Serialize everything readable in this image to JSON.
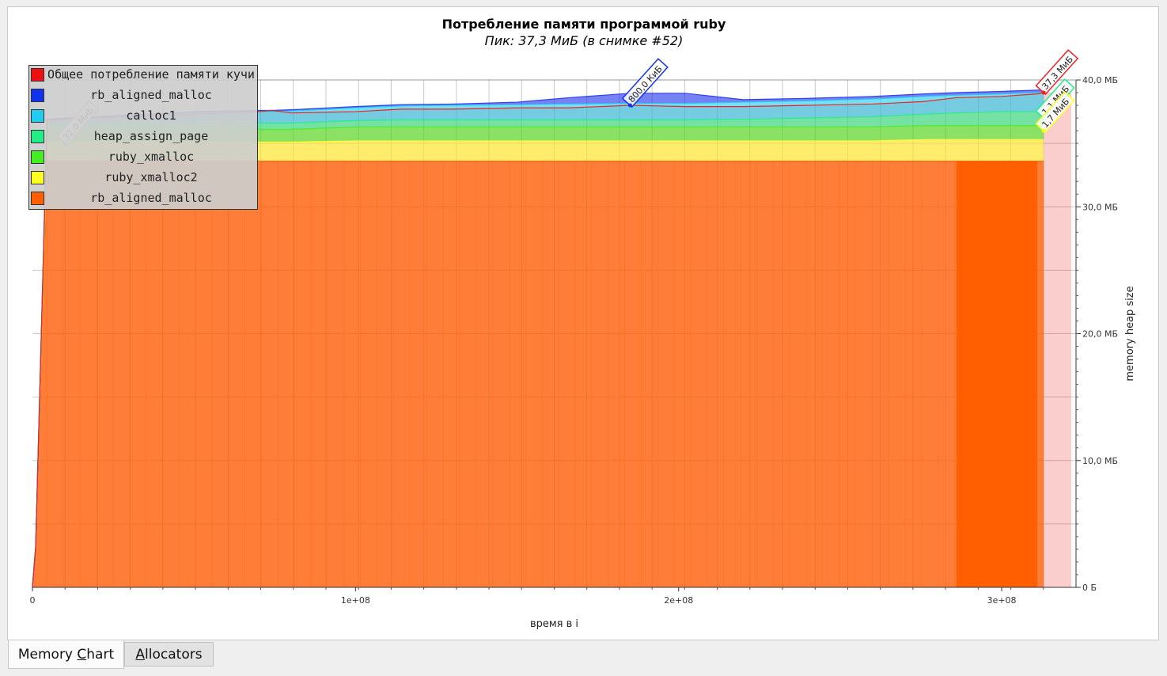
{
  "chart_data": {
    "type": "area",
    "title": "Потребление памяти программой ruby",
    "subtitle": "Пик: 37,3 МиБ (в снимке #52)",
    "xlabel": "время в i",
    "ylabel": "memory heap size",
    "x_ticks": [
      "0",
      "1e+08",
      "2e+08",
      "3e+08"
    ],
    "x_tick_values": [
      0,
      100000000,
      200000000,
      300000000
    ],
    "y_ticks": [
      "0 Б",
      "10,0 МБ",
      "20,0 МБ",
      "30,0 МБ",
      "40,0 МБ"
    ],
    "y_tick_values": [
      0,
      10,
      20,
      30,
      40
    ],
    "xlim": [
      0,
      323000000
    ],
    "ylim": [
      0,
      40
    ],
    "y_axis_position": "right",
    "grid": true,
    "legend_position": "top-left",
    "x": [
      0,
      1000000,
      4500000,
      10000000,
      20000000,
      30000000,
      40000000,
      50000000,
      60000000,
      70000000,
      74000000,
      80000000,
      100000000,
      114000000,
      130000000,
      150000000,
      166000000,
      185000000,
      202000000,
      220000000,
      240000000,
      260000000,
      276000000,
      286000000,
      300000000,
      311000000,
      313000000
    ],
    "series": [
      {
        "name": "rb_aligned_malloc",
        "color": "#ff5f00",
        "values": [
          0,
          3,
          33.6,
          33.6,
          33.6,
          33.6,
          33.6,
          33.6,
          33.6,
          33.6,
          33.6,
          33.6,
          33.6,
          33.6,
          33.6,
          33.6,
          33.6,
          33.6,
          33.6,
          33.6,
          33.6,
          33.6,
          33.6,
          33.6,
          33.6,
          33.6,
          33.6
        ]
      },
      {
        "name": "ruby_xmalloc2",
        "color": "#ffff30",
        "values": [
          0,
          0.1,
          1.5,
          1.5,
          1.5,
          1.5,
          1.5,
          1.5,
          1.5,
          1.5,
          1.5,
          1.5,
          1.6,
          1.6,
          1.6,
          1.6,
          1.6,
          1.6,
          1.6,
          1.6,
          1.6,
          1.6,
          1.7,
          1.7,
          1.7,
          1.7,
          1.7
        ]
      },
      {
        "name": "ruby_xmalloc",
        "color": "#44ee22",
        "values": [
          0,
          0.05,
          1.0,
          1.0,
          1.0,
          1.0,
          1.0,
          1.0,
          1.0,
          1.0,
          1.0,
          1.0,
          1.1,
          1.1,
          1.1,
          1.1,
          1.1,
          1.1,
          1.1,
          1.1,
          1.1,
          1.1,
          1.1,
          1.1,
          1.1,
          1.1,
          1.1
        ]
      },
      {
        "name": "heap_assign_page",
        "color": "#22ee88",
        "values": [
          0,
          0.02,
          0.4,
          0.4,
          0.4,
          0.45,
          0.45,
          0.5,
          0.5,
          0.5,
          0.5,
          0.5,
          0.5,
          0.55,
          0.55,
          0.55,
          0.55,
          0.55,
          0.55,
          0.6,
          0.7,
          0.8,
          0.9,
          1.0,
          1.1,
          1.1,
          1.1
        ]
      },
      {
        "name": "calloc1",
        "color": "#22ccee",
        "values": [
          0,
          0.02,
          0.3,
          0.4,
          0.5,
          0.6,
          0.7,
          0.8,
          0.85,
          0.9,
          0.9,
          0.95,
          1.0,
          1.1,
          1.15,
          1.2,
          1.25,
          1.3,
          1.3,
          1.35,
          1.35,
          1.4,
          1.4,
          1.4,
          1.4,
          1.5,
          1.5
        ]
      },
      {
        "name": "rb_aligned_malloc",
        "color": "#2233ee",
        "values": [
          0,
          0.01,
          0.1,
          0.1,
          0.1,
          0.1,
          0.1,
          0.1,
          0.1,
          0.1,
          0.1,
          0.1,
          0.1,
          0.1,
          0.1,
          0.2,
          0.5,
          0.8,
          0.8,
          0.2,
          0.2,
          0.2,
          0.2,
          0.2,
          0.2,
          0.2,
          0.2
        ]
      }
    ],
    "total": {
      "name": "Общее потребление памяти кучи",
      "color": "#ee2222",
      "values": [
        0,
        3.3,
        36.8,
        36.9,
        37.0,
        37.1,
        37.2,
        37.3,
        37.4,
        37.5,
        37.6,
        37.4,
        37.5,
        37.7,
        37.7,
        37.8,
        37.8,
        38.0,
        37.9,
        37.9,
        38.0,
        38.1,
        38.3,
        38.6,
        38.7,
        38.9,
        39.0
      ]
    },
    "annotations": [
      {
        "text": "32,0 МиБ",
        "x": 10000000,
        "y": 35.0
      },
      {
        "text": "800,0 КиБ",
        "x": 185000000,
        "y": 38.0
      },
      {
        "text": "37,3 МиБ",
        "x": 313000000,
        "y": 39.0
      },
      {
        "text": "1,1 МиБ",
        "x": 313000000,
        "y": 37.0
      },
      {
        "text": "1,7 МиБ",
        "x": 313000000,
        "y": 36.0
      }
    ]
  },
  "legend": {
    "items": [
      {
        "label": "Общее потребление памяти кучи",
        "color": "#ee1111"
      },
      {
        "label": "rb_aligned_malloc",
        "color": "#1133ee"
      },
      {
        "label": "calloc1",
        "color": "#22ccee"
      },
      {
        "label": "heap_assign_page",
        "color": "#22ee88"
      },
      {
        "label": "ruby_xmalloc",
        "color": "#44ee22"
      },
      {
        "label": "ruby_xmalloc2",
        "color": "#ffff22"
      },
      {
        "label": "rb_aligned_malloc",
        "color": "#ff5f00"
      }
    ]
  },
  "tabs": {
    "memory_chart": {
      "before": "Memory ",
      "mnemonic": "C",
      "after": "hart"
    },
    "allocators": {
      "before": "",
      "mnemonic": "A",
      "after": "llocators"
    }
  }
}
